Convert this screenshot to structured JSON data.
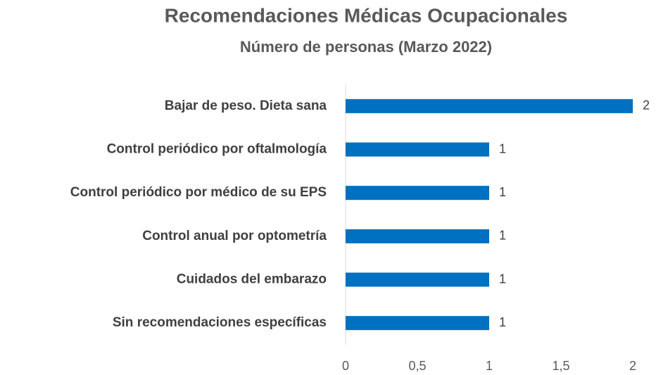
{
  "chart_data": {
    "type": "bar",
    "orientation": "horizontal",
    "title": "Recomendaciones Médicas Ocupacionales",
    "subtitle": "Número de personas (Marzo 2022)",
    "categories": [
      "Bajar de peso. Dieta sana",
      "Control periódico por oftalmología",
      "Control periódico por médico de su EPS",
      "Control anual por optometría",
      "Cuidados del embarazo",
      "Sin recomendaciones específicas"
    ],
    "values": [
      2,
      1,
      1,
      1,
      1,
      1
    ],
    "color": "#0070c0",
    "xlim": [
      0,
      2
    ],
    "xticks": [
      0,
      {
        "value": 0.5,
        "label": "0,5"
      },
      1,
      {
        "value": 1.5,
        "label": "1,5"
      },
      2
    ],
    "grid": false
  }
}
